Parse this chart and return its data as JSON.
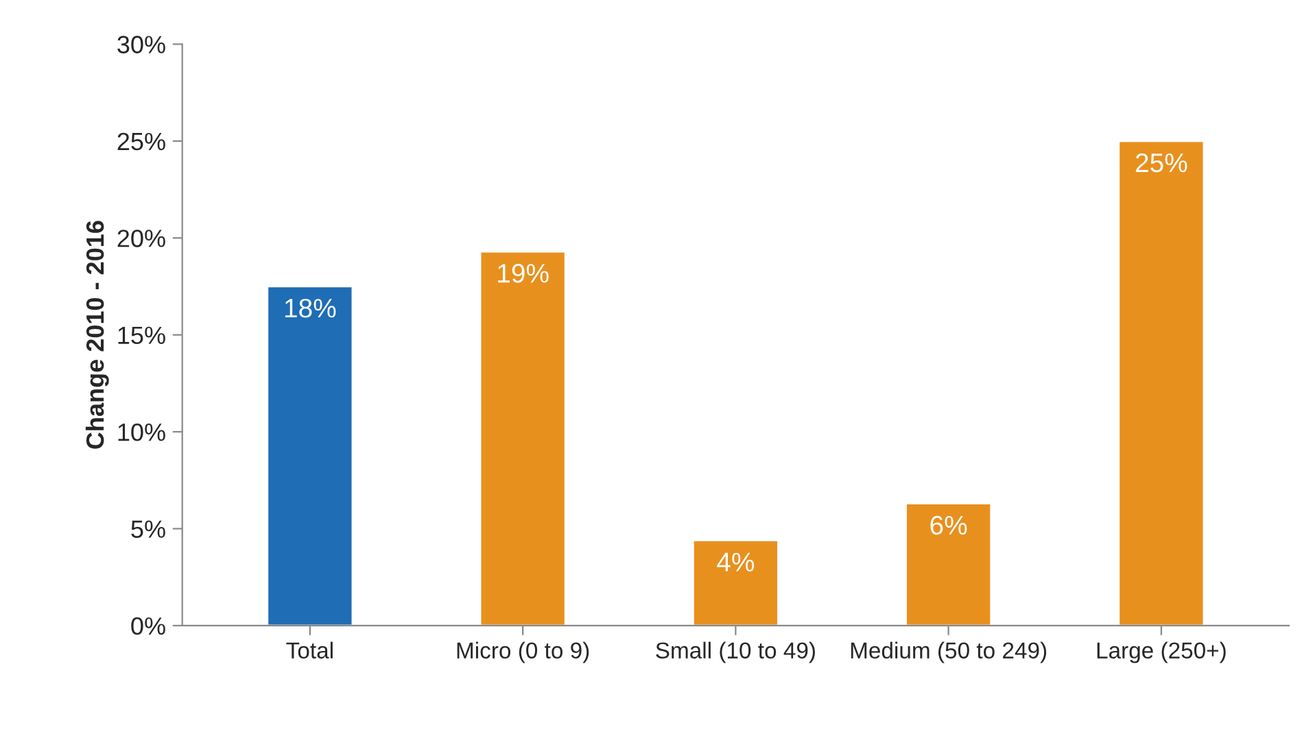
{
  "chart_data": {
    "type": "bar",
    "ylabel": "Change 2010 - 2016",
    "categories": [
      "Total",
      "Micro (0 to 9)",
      "Small (10 to 49)",
      "Medium (50 to 249)",
      "Large (250+)"
    ],
    "values": [
      17.5,
      19.3,
      4.4,
      6.3,
      25.0
    ],
    "value_labels": [
      "18%",
      "19%",
      "4%",
      "6%",
      "25%"
    ],
    "colors": [
      "#1f6db5",
      "#e8901e",
      "#e8901e",
      "#e8901e",
      "#e8901e"
    ],
    "ylim": [
      0,
      30
    ],
    "yticks": [
      {
        "value": 0,
        "label": "0%"
      },
      {
        "value": 5,
        "label": "5%"
      },
      {
        "value": 10,
        "label": "10%"
      },
      {
        "value": 15,
        "label": "15%"
      },
      {
        "value": 20,
        "label": "20%"
      },
      {
        "value": 25,
        "label": "25%"
      },
      {
        "value": 30,
        "label": "30%"
      }
    ],
    "grid": false
  }
}
